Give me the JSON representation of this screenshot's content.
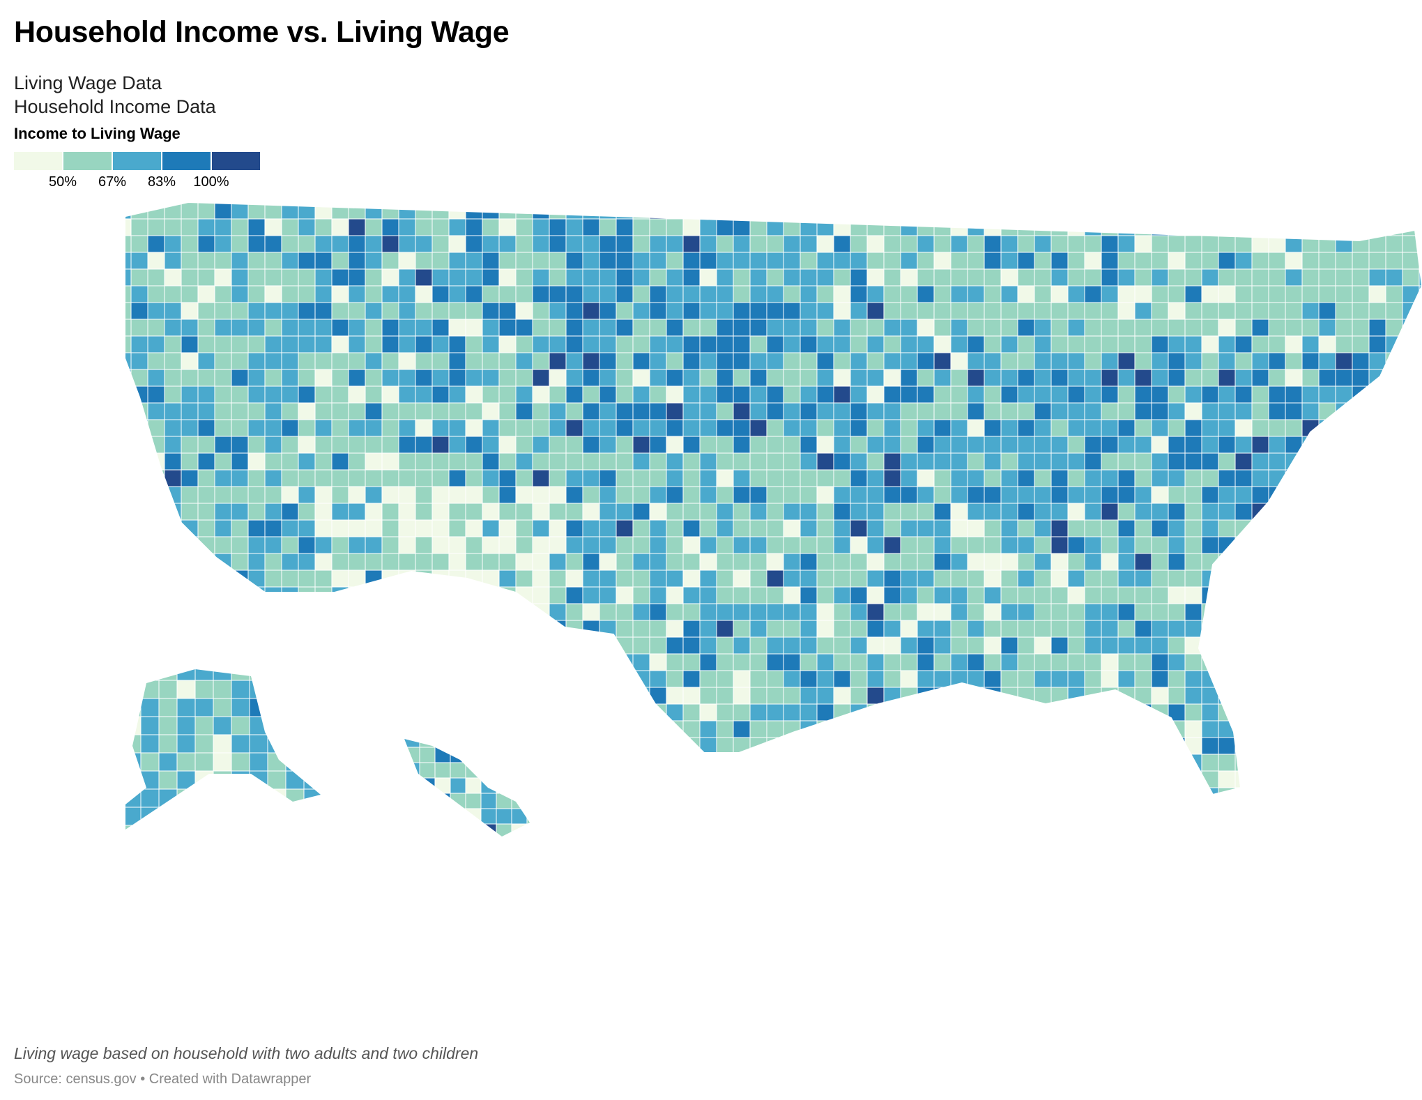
{
  "title": "Household Income vs. Living Wage",
  "subtitle": {
    "line1": "Living Wage Data",
    "line2": "Household Income Data"
  },
  "legend": {
    "title": "Income to Living Wage",
    "colors": [
      "#f1f9e8",
      "#98d5c0",
      "#4aa9cd",
      "#1e7ab8",
      "#234a8c"
    ],
    "ticks": [
      "50%",
      "67%",
      "83%",
      "100%"
    ]
  },
  "note": "Living wage based on household with two adults and two children",
  "source": {
    "text": "Source: census.gov",
    "separator": "•",
    "credit": "Created with Datawrapper"
  },
  "map": {
    "region": "United States counties",
    "border_color": "#ffffff",
    "classes": [
      {
        "label": "below 50%",
        "color": "#f1f9e8"
      },
      {
        "label": "50% – 67%",
        "color": "#98d5c0"
      },
      {
        "label": "67% – 83%",
        "color": "#4aa9cd"
      },
      {
        "label": "83% – 100%",
        "color": "#1e7ab8"
      },
      {
        "label": "100% and above",
        "color": "#234a8c"
      }
    ]
  }
}
